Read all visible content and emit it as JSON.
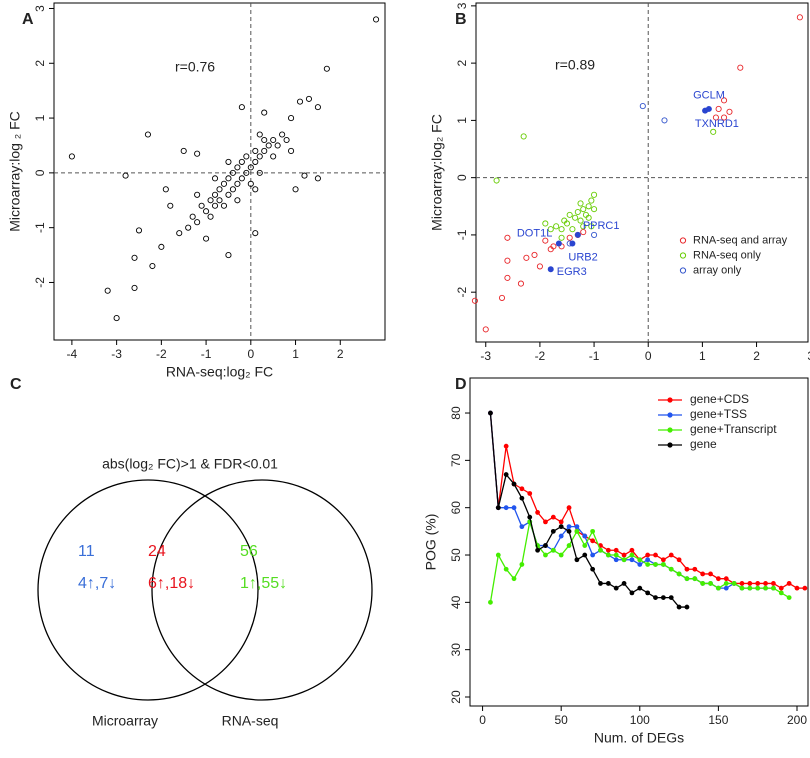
{
  "chart_data": [
    {
      "type": "scatter",
      "panel": "A",
      "annotation": "r=0.76",
      "xlabel": "RNA-seq:log₂ FC",
      "ylabel": "Microarray:log ₂ FC",
      "xlim": [
        -4.4,
        3.0
      ],
      "ylim": [
        -3.05,
        3.1
      ],
      "xticks": [
        -4,
        -3,
        -2,
        -1,
        0,
        1,
        2
      ],
      "yticks": [
        -2,
        -1,
        0,
        1,
        2,
        3
      ],
      "vlines": [
        0
      ],
      "hlines": [
        0
      ],
      "series": [
        {
          "color": "#000000",
          "x": [
            -4,
            -3,
            -3.2,
            -2.6,
            -2.6,
            -2.2,
            -2,
            -2.3,
            -2.8,
            -1.8,
            -1.5,
            -1.2,
            -2.5,
            -1.9,
            2.8,
            1.7,
            1.3,
            1.5,
            1.1,
            0.9,
            1.2,
            1.5,
            1.0,
            -0.2,
            0.3,
            -0.5,
            0.1,
            -1.0,
            -1.4,
            -1.3,
            -1.2,
            -1.1,
            -1.0,
            -0.9,
            -0.9,
            -0.8,
            -0.8,
            -0.7,
            -0.7,
            -0.6,
            -0.6,
            -0.5,
            -0.5,
            -0.4,
            -0.4,
            -0.3,
            -0.3,
            -0.2,
            -0.2,
            -0.1,
            -0.1,
            0,
            0,
            0.1,
            0.1,
            0.2,
            0.2,
            0.3,
            0.3,
            0.4,
            0.5,
            0.5,
            0.6,
            0.7,
            0.8,
            0.9,
            -1.6,
            -0.5,
            -0.3,
            0.1,
            -0.8,
            0.2,
            -1.2
          ],
          "values": [
            0.3,
            -2.65,
            -2.15,
            -2.1,
            -1.55,
            -1.7,
            -1.35,
            0.7,
            -0.05,
            -0.6,
            0.4,
            0.35,
            -1.05,
            -0.3,
            2.8,
            1.9,
            1.35,
            1.2,
            1.3,
            1.0,
            -0.05,
            -0.1,
            -0.3,
            1.2,
            1.1,
            -1.5,
            -1.1,
            -1.2,
            -1.0,
            -0.8,
            -0.9,
            -0.6,
            -0.7,
            -0.5,
            -0.8,
            -0.4,
            -0.6,
            -0.3,
            -0.5,
            -0.2,
            -0.6,
            -0.1,
            -0.4,
            0.0,
            -0.3,
            0.1,
            -0.2,
            0.2,
            -0.1,
            0.0,
            0.3,
            0.1,
            -0.2,
            0.2,
            0.4,
            0.3,
            0.0,
            0.4,
            0.6,
            0.5,
            0.3,
            0.6,
            0.5,
            0.7,
            0.6,
            0.4,
            -1.1,
            0.2,
            -0.5,
            -0.3,
            -0.1,
            0.7,
            -0.4
          ]
        }
      ]
    },
    {
      "type": "scatter",
      "panel": "B",
      "annotation": "r=0.89",
      "ylabel": "Microarray:log₂ FC",
      "xlim": [
        -3.18,
        2.95
      ],
      "ylim": [
        -2.87,
        3.05
      ],
      "xticks": [
        -3,
        -2,
        -1,
        0,
        1,
        2,
        3
      ],
      "yticks": [
        -2,
        -1,
        0,
        1,
        2,
        3
      ],
      "vlines": [
        0
      ],
      "hlines": [
        0
      ],
      "legend_position": "right",
      "series": [
        {
          "name": "RNA-seq and array",
          "color": "#e8262a",
          "x": [
            -3.2,
            -3,
            -2.7,
            -2.6,
            -2.6,
            -2.35,
            -2.25,
            -2.1,
            -2.0,
            -2.6,
            -1.9,
            -1.8,
            -1.75,
            -1.6,
            -1.45,
            -1.3,
            -1.2,
            1.7,
            1.4,
            1.3,
            1.5,
            1.25,
            1.4,
            2.8
          ],
          "values": [
            -2.15,
            -2.65,
            -2.1,
            -1.75,
            -1.45,
            -1.85,
            -1.4,
            -1.35,
            -1.55,
            -1.05,
            -1.1,
            -1.25,
            -1.2,
            -1.2,
            -1.05,
            -1.0,
            -0.95,
            1.92,
            1.35,
            1.2,
            1.15,
            1.05,
            1.05,
            2.8
          ]
        },
        {
          "name": "RNA-seq only",
          "color": "#66cc00",
          "x": [
            -2.8,
            -2.3,
            1.2,
            -1.9,
            -1.8,
            -1.7,
            -1.6,
            -1.55,
            -1.5,
            -1.45,
            -1.4,
            -1.35,
            -1.3,
            -1.25,
            -1.2,
            -1.15,
            -1.1,
            -1.1,
            -1.05,
            -1.0,
            -1.0,
            -1.2,
            -1.6,
            -1.05,
            -1.25
          ],
          "values": [
            -0.05,
            0.72,
            0.8,
            -0.8,
            -0.9,
            -0.85,
            -0.9,
            -0.75,
            -0.8,
            -0.65,
            -0.9,
            -0.7,
            -0.6,
            -0.75,
            -0.55,
            -0.65,
            -0.5,
            -0.7,
            -0.4,
            -0.55,
            -0.3,
            -0.85,
            -1.05,
            -0.85,
            -0.45
          ]
        },
        {
          "name": "array only",
          "color": "#3355cc",
          "x": [
            -0.1,
            0.3,
            -1.45,
            -1.0
          ],
          "values": [
            1.25,
            1.0,
            -1.15,
            -1.0
          ]
        }
      ],
      "highlights": [
        {
          "text": "GCLM",
          "x": 1.05,
          "y": 1.17
        },
        {
          "text": "TXNRD1",
          "x": 1.12,
          "y": 1.2
        },
        {
          "text": "PPRC1",
          "x": -1.3,
          "y": -1.0
        },
        {
          "text": "DOT1L",
          "x": -1.65,
          "y": -1.15
        },
        {
          "text": "URB2",
          "x": -1.4,
          "y": -1.15
        },
        {
          "text": "EGR3",
          "x": -1.8,
          "y": -1.6
        }
      ],
      "highlight_color": "#2a45d0"
    },
    {
      "type": "venn",
      "panel": "C",
      "title": "abs(log₂ FC)>1 & FDR<0.01",
      "sets": [
        "Microarray",
        "RNA-seq"
      ],
      "regions": [
        {
          "value": 11,
          "label": "4↑,7↓",
          "color": "#3a6fd8"
        },
        {
          "value": 24,
          "label": "6↑,18↓",
          "color": "#e8141e"
        },
        {
          "value": 56,
          "label": "1↑,55↓",
          "color": "#55dd22"
        }
      ]
    },
    {
      "type": "line",
      "panel": "D",
      "xlabel": "Num. of DEGs",
      "ylabel": "POG (%)",
      "xlim": [
        -8,
        207
      ],
      "ylim": [
        18.1,
        87.4
      ],
      "xticks": [
        0,
        50,
        100,
        150,
        200
      ],
      "yticks": [
        20,
        30,
        40,
        50,
        60,
        70,
        80
      ],
      "legend_position": "top-right",
      "x": [
        5,
        10,
        15,
        20,
        25,
        30,
        35,
        40,
        45,
        50,
        55,
        60,
        65,
        70,
        75,
        80,
        85,
        90,
        95,
        100,
        105,
        110,
        115,
        120,
        125,
        130,
        135,
        140,
        145,
        150,
        155,
        160,
        165,
        170,
        175,
        180,
        185,
        190,
        195,
        200,
        205
      ],
      "series": [
        {
          "name": "gene+CDS",
          "color": "#ff0000",
          "values": [
            80,
            60,
            73,
            65,
            64,
            63,
            59,
            57,
            58,
            57,
            60,
            55,
            54,
            53,
            52,
            51,
            51,
            50,
            51,
            49,
            50,
            50,
            49,
            50,
            49,
            47,
            47,
            46,
            46,
            45,
            45,
            44,
            44,
            44,
            44,
            44,
            44,
            43,
            44,
            43,
            43
          ]
        },
        {
          "name": "gene+TSS",
          "color": "#2255ee",
          "values": [
            80,
            60,
            60,
            60,
            56,
            57,
            52,
            52,
            51,
            54,
            56,
            56,
            54,
            50,
            51,
            50,
            49,
            49,
            49,
            48,
            49,
            48,
            48,
            47,
            46,
            45,
            45,
            44,
            44,
            43,
            43,
            44,
            43,
            43,
            43,
            43,
            43,
            null,
            null,
            null,
            null
          ]
        },
        {
          "name": "gene+Transcript",
          "color": "#44ee00",
          "values": [
            40,
            50,
            47,
            45,
            48,
            57,
            52,
            50,
            51,
            50,
            52,
            55,
            52,
            55,
            51,
            50,
            50,
            49,
            50,
            49,
            48,
            48,
            48,
            47,
            46,
            45,
            45,
            44,
            44,
            43,
            44,
            44,
            43,
            43,
            43,
            43,
            43,
            42,
            41,
            null,
            null
          ]
        },
        {
          "name": "gene",
          "color": "#000000",
          "values": [
            80,
            60,
            67,
            65,
            62,
            58,
            51,
            52,
            55,
            56,
            55,
            49,
            50,
            47,
            44,
            44,
            43,
            44,
            42,
            43,
            42,
            41,
            41,
            41,
            39,
            39,
            null,
            null,
            null,
            null,
            null,
            null,
            null,
            null,
            null,
            null,
            null,
            null,
            null,
            null,
            null
          ]
        }
      ]
    }
  ]
}
